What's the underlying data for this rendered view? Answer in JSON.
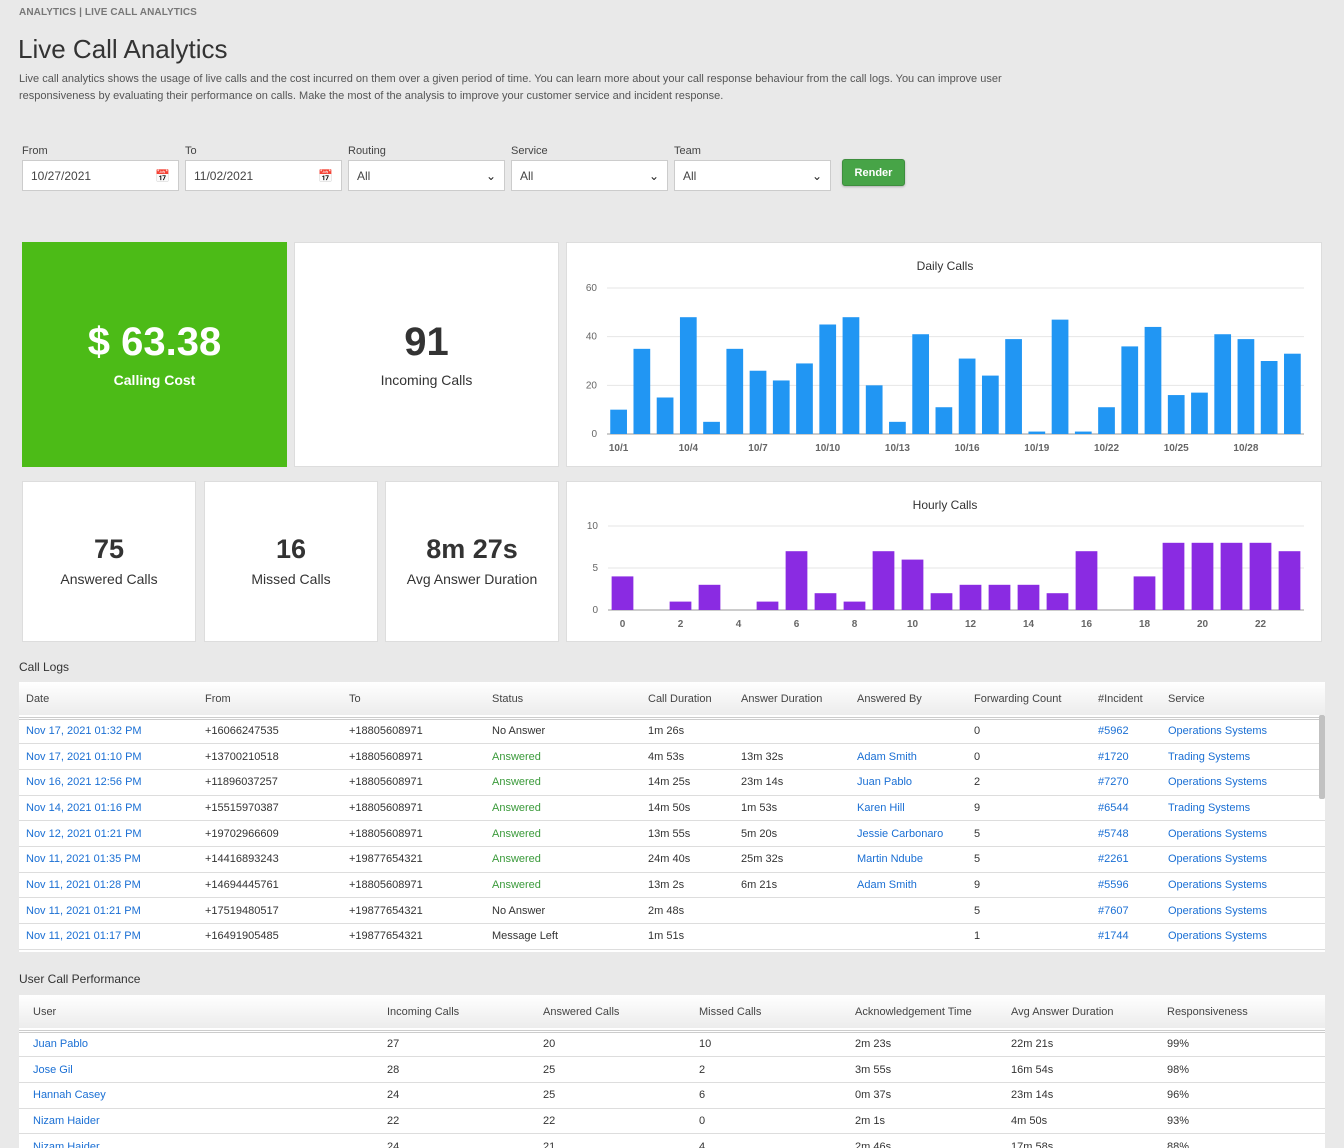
{
  "breadcrumb": "ANALYTICS | LIVE CALL ANALYTICS",
  "title": "Live Call Analytics",
  "description": "Live call analytics shows the usage of live calls and the cost incurred on them over a given period of time. You can learn more about your call response behaviour from the call logs. You can improve user responsiveness by evaluating their performance on calls. Make the most of the analysis to improve your customer service and incident response.",
  "filters": {
    "from_label": "From",
    "from_value": "10/27/2021",
    "to_label": "To",
    "to_value": "11/02/2021",
    "routing_label": "Routing",
    "routing_value": "All",
    "service_label": "Service",
    "service_value": "All",
    "team_label": "Team",
    "team_value": "All",
    "render_label": "Render"
  },
  "stats": {
    "cost_value": "$ 63.38",
    "cost_label": "Calling Cost",
    "incoming_value": "91",
    "incoming_label": "Incoming Calls",
    "answered_value": "75",
    "answered_label": "Answered Calls",
    "missed_value": "16",
    "missed_label": "Missed Calls",
    "avg_value": "8m 27s",
    "avg_label": "Avg Answer Duration"
  },
  "colors": {
    "daily": "#2196f3",
    "hourly": "#8a2be2",
    "green": "#4cbb17",
    "link": "#1a6fd4"
  },
  "chart_data": [
    {
      "type": "bar",
      "title": "Daily Calls",
      "xticks": [
        "10/1",
        "10/4",
        "10/7",
        "10/10",
        "10/13",
        "10/16",
        "10/19",
        "10/22",
        "10/25",
        "10/28"
      ],
      "values": [
        10,
        35,
        15,
        48,
        5,
        35,
        26,
        22,
        29,
        45,
        48,
        20,
        5,
        41,
        11,
        31,
        24,
        39,
        1,
        47,
        1,
        11,
        36,
        44,
        16,
        17,
        41,
        39,
        30,
        33
      ],
      "ylim": [
        0,
        60
      ],
      "yticks": [
        0,
        20,
        40,
        60
      ]
    },
    {
      "type": "bar",
      "title": "Hourly Calls",
      "xticks": [
        "0",
        "2",
        "4",
        "6",
        "8",
        "10",
        "12",
        "14",
        "16",
        "18",
        "20",
        "22"
      ],
      "values": [
        4,
        0,
        1,
        3,
        0,
        1,
        7,
        2,
        1,
        7,
        6,
        2,
        3,
        3,
        3,
        2,
        7,
        0,
        4,
        8,
        8,
        8,
        8,
        7
      ],
      "ylim": [
        0,
        10
      ],
      "yticks": [
        0,
        5,
        10
      ]
    }
  ],
  "call_logs": {
    "heading": "Call Logs",
    "columns": [
      "Date",
      "From",
      "To",
      "Status",
      "Call Duration",
      "Answer Duration",
      "Answered By",
      "Forwarding Count",
      "#Incident",
      "Service"
    ],
    "rows": [
      [
        "Nov 17, 2021 01:32 PM",
        "+16066247535",
        "+18805608971",
        "No Answer",
        "1m 26s",
        "",
        "",
        "0",
        "#5962",
        "Operations Systems"
      ],
      [
        "Nov 17, 2021 01:10 PM",
        "+13700210518",
        "+18805608971",
        "Answered",
        "4m 53s",
        "13m 32s",
        "Adam Smith",
        "0",
        "#1720",
        "Trading Systems"
      ],
      [
        "Nov 16, 2021 12:56 PM",
        "+11896037257",
        "+18805608971",
        "Answered",
        "14m 25s",
        "23m 14s",
        "Juan Pablo",
        "2",
        "#7270",
        "Operations Systems"
      ],
      [
        "Nov 14, 2021 01:16 PM",
        "+15515970387",
        "+18805608971",
        "Answered",
        "14m 50s",
        "1m 53s",
        "Karen Hill",
        "9",
        "#6544",
        "Trading Systems"
      ],
      [
        "Nov 12, 2021 01:21 PM",
        "+19702966609",
        "+18805608971",
        "Answered",
        "13m 55s",
        "5m 20s",
        "Jessie Carbonaro",
        "5",
        "#5748",
        "Operations Systems"
      ],
      [
        "Nov 11, 2021 01:35 PM",
        "+14416893243",
        "+19877654321",
        "Answered",
        "24m 40s",
        "25m 32s",
        "Martin Ndube",
        "5",
        "#2261",
        "Operations Systems"
      ],
      [
        "Nov 11, 2021 01:28 PM",
        "+14694445761",
        "+18805608971",
        "Answered",
        "13m 2s",
        "6m 21s",
        "Adam Smith",
        "9",
        "#5596",
        "Operations Systems"
      ],
      [
        "Nov 11, 2021 01:21 PM",
        "+17519480517",
        "+19877654321",
        "No Answer",
        "2m 48s",
        "",
        "",
        "5",
        "#7607",
        "Operations Systems"
      ],
      [
        "Nov 11, 2021 01:17 PM",
        "+16491905485",
        "+19877654321",
        "Message Left",
        "1m 51s",
        "",
        "",
        "1",
        "#1744",
        "Operations Systems"
      ]
    ]
  },
  "user_perf": {
    "heading": "User Call Performance",
    "columns": [
      "User",
      "Incoming Calls",
      "Answered Calls",
      "Missed Calls",
      "Acknowledgement Time",
      "Avg Answer Duration",
      "Responsiveness"
    ],
    "rows": [
      [
        "Juan Pablo",
        "27",
        "20",
        "10",
        "2m 23s",
        "22m 21s",
        "99%"
      ],
      [
        "Jose Gil",
        "28",
        "25",
        "2",
        "3m 55s",
        "16m 54s",
        "98%"
      ],
      [
        "Hannah Casey",
        "24",
        "25",
        "6",
        "0m 37s",
        "23m 14s",
        "96%"
      ],
      [
        "Nizam Haider",
        "22",
        "22",
        "0",
        "2m 1s",
        "4m 50s",
        "93%"
      ],
      [
        "Nizam Haider",
        "24",
        "21",
        "4",
        "2m 46s",
        "17m 58s",
        "88%"
      ]
    ]
  }
}
